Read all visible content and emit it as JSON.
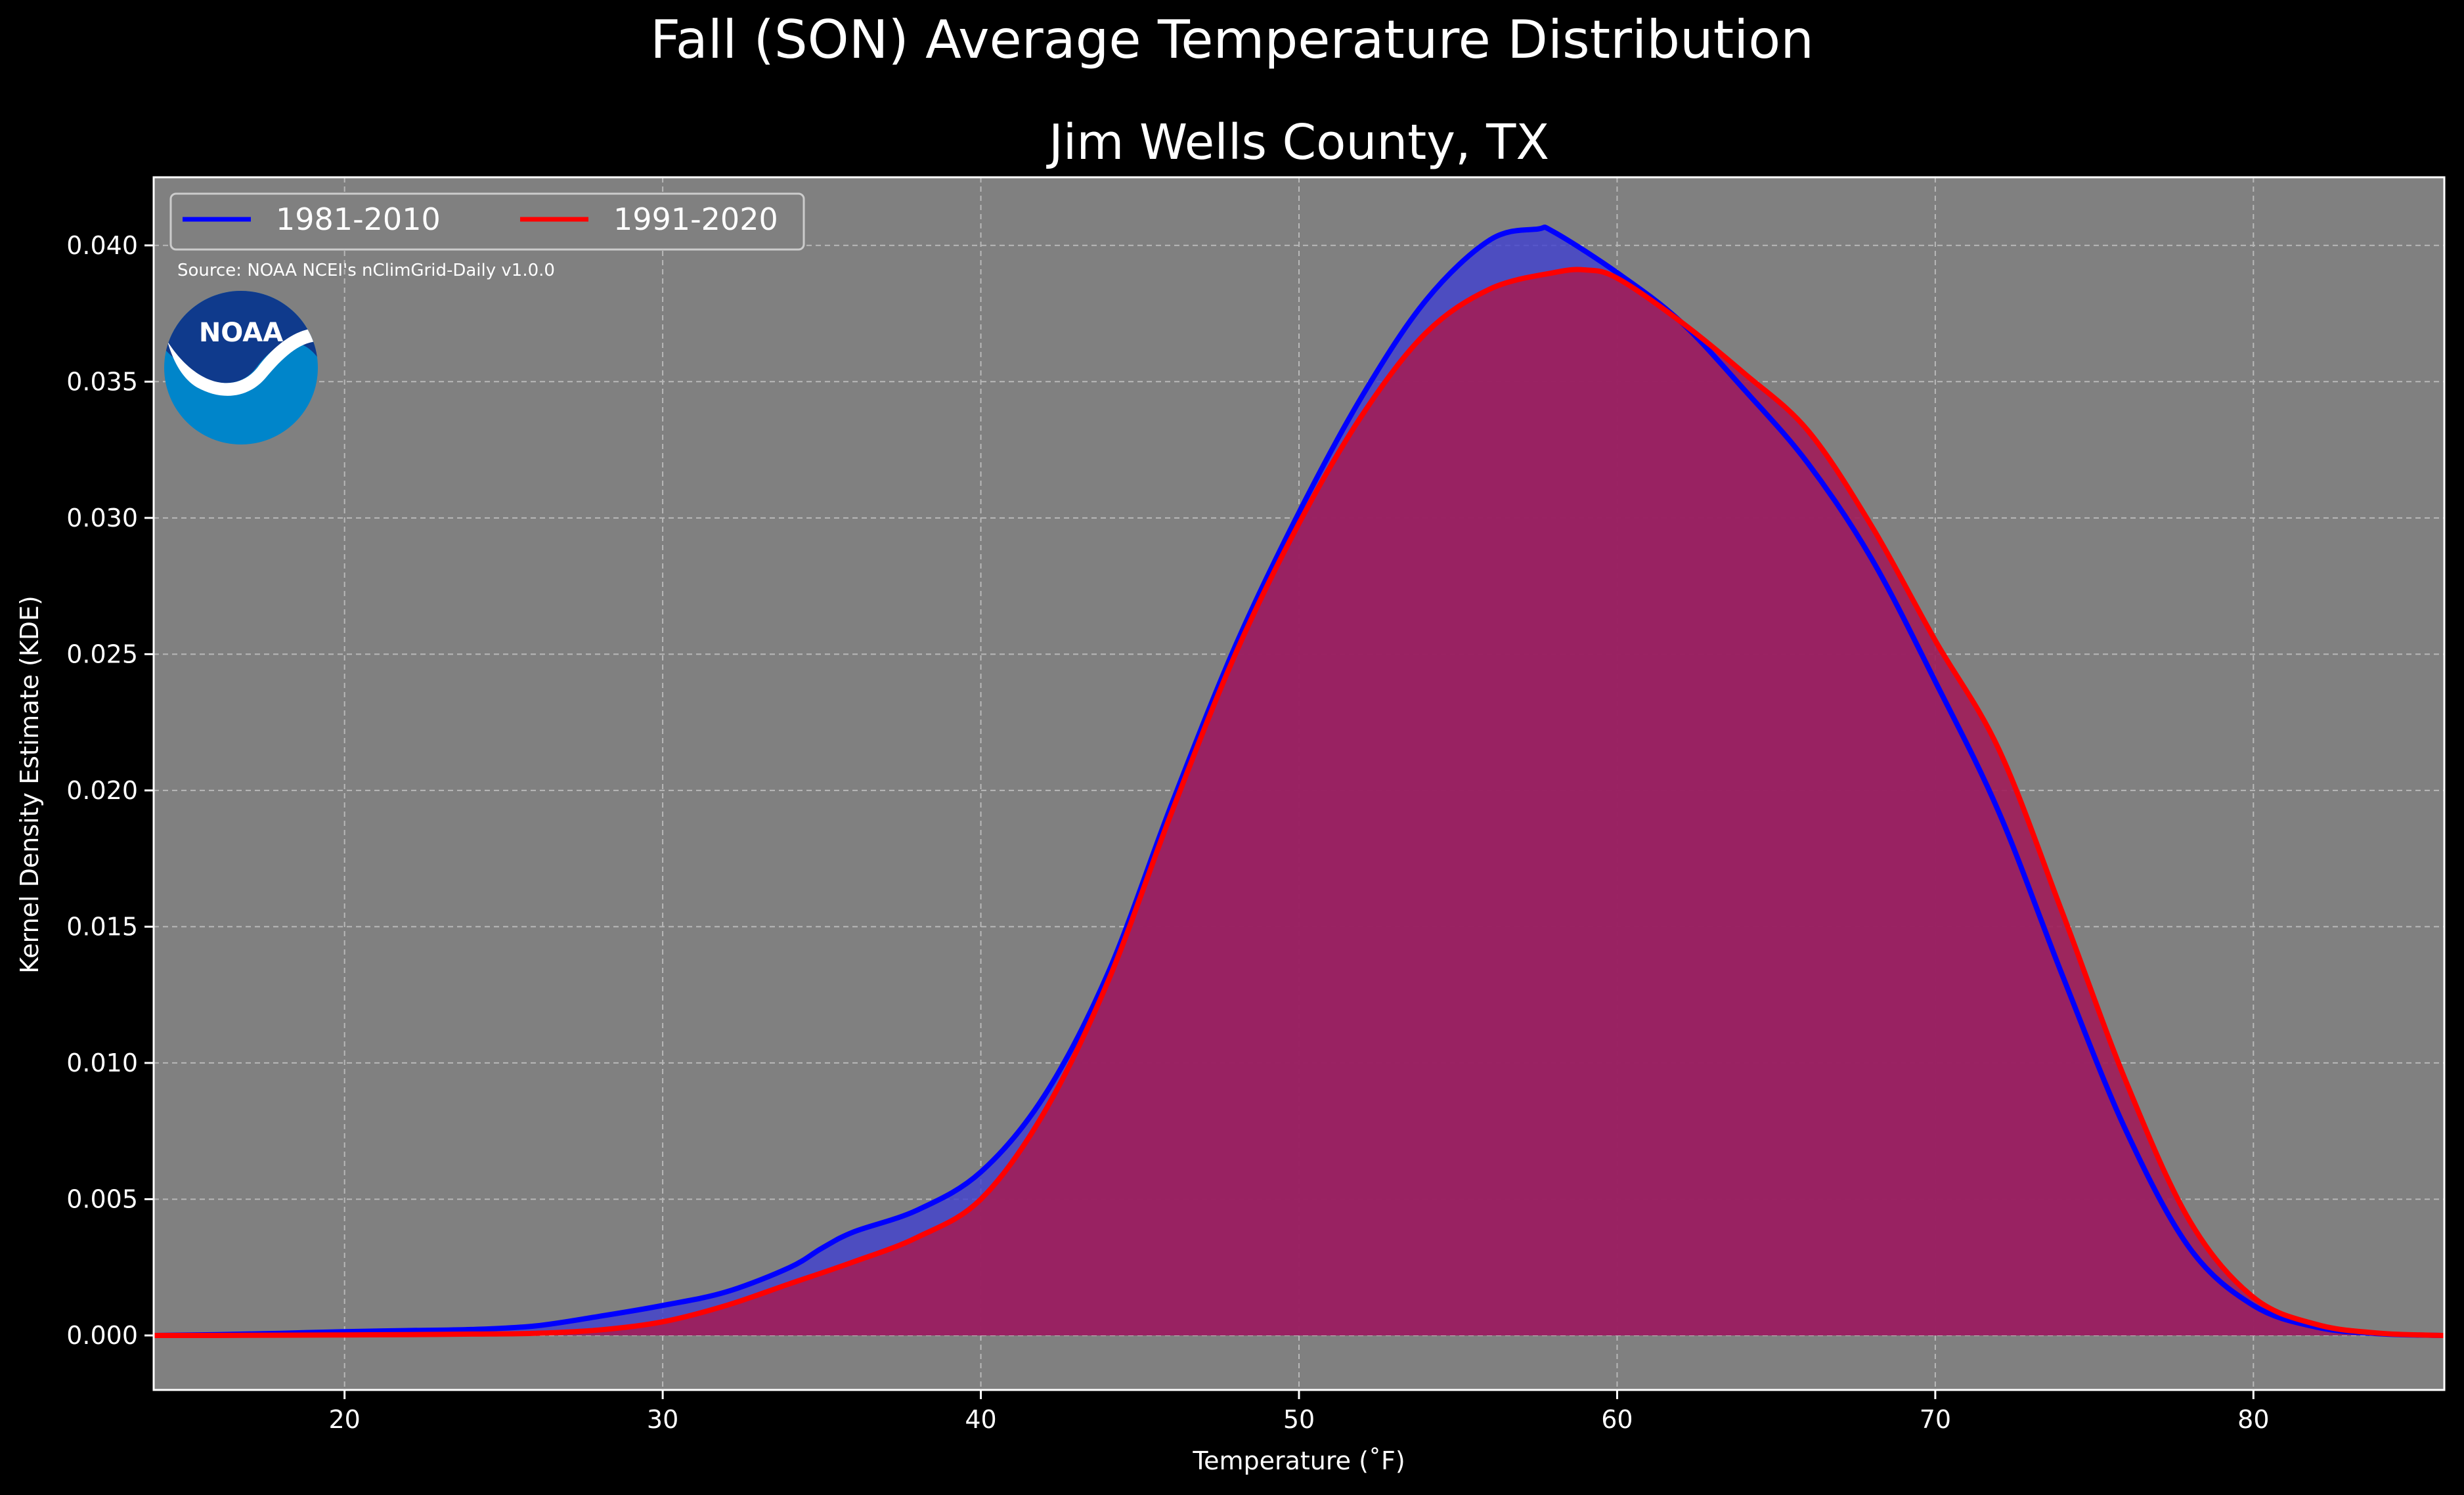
{
  "chart_data": {
    "type": "area",
    "title": "Fall (SON) Average Temperature Distribution",
    "subtitle": "Jim Wells County, TX",
    "xlabel": "Temperature (˚F)",
    "ylabel": "Kernel Density Estimate (KDE)",
    "xlim": [
      14,
      86
    ],
    "ylim": [
      -0.002,
      0.0425
    ],
    "x_ticks": [
      20,
      30,
      40,
      50,
      60,
      70,
      80
    ],
    "y_ticks": [
      0.0,
      0.005,
      0.01,
      0.015,
      0.02,
      0.025,
      0.03,
      0.035,
      0.04
    ],
    "y_tick_labels": [
      "0.000",
      "0.005",
      "0.010",
      "0.015",
      "0.020",
      "0.025",
      "0.030",
      "0.035",
      "0.040"
    ],
    "grid": true,
    "legend_position": "top-left",
    "source_note": "Source: NOAA NCEI's nClimGrid-Daily v1.0.0",
    "logo_text": "NOAA",
    "colors": {
      "background": "#000000",
      "plot_background": "#808080",
      "series1_line": "#0000ff",
      "series1_fill": "#4040d0",
      "series2_line": "#ff0000",
      "series2_fill": "#a01e5a"
    },
    "series": [
      {
        "name": "1981-2010",
        "x": [
          14,
          16,
          18,
          20,
          22,
          24,
          26,
          28,
          30,
          32,
          34,
          35,
          36,
          38,
          40,
          42,
          44,
          46,
          48,
          50,
          52,
          54,
          56,
          57.5,
          58,
          60,
          62,
          64,
          66,
          68,
          70,
          72,
          74,
          76,
          78,
          80,
          82,
          84,
          86
        ],
        "y": [
          0.0,
          3e-05,
          8e-05,
          0.00014,
          0.00018,
          0.00022,
          0.00035,
          0.0007,
          0.0011,
          0.0016,
          0.0025,
          0.0032,
          0.0038,
          0.0046,
          0.006,
          0.0088,
          0.0133,
          0.0195,
          0.0253,
          0.0302,
          0.0345,
          0.038,
          0.0402,
          0.0406,
          0.0405,
          0.039,
          0.0372,
          0.0347,
          0.032,
          0.0285,
          0.024,
          0.0192,
          0.0132,
          0.0075,
          0.0032,
          0.0011,
          0.0003,
          6e-05,
          0.0
        ]
      },
      {
        "name": "1991-2020",
        "x": [
          14,
          16,
          18,
          20,
          22,
          24,
          26,
          28,
          30,
          32,
          34,
          36,
          38,
          40,
          42,
          44,
          46,
          48,
          50,
          52,
          54,
          56,
          58,
          59,
          60,
          62,
          64,
          66,
          68,
          70,
          72,
          74,
          76,
          78,
          80,
          82,
          84,
          86
        ],
        "y": [
          0.0,
          0.0,
          1e-05,
          2e-05,
          3e-05,
          5e-05,
          8e-05,
          0.0002,
          0.0005,
          0.0011,
          0.0019,
          0.0027,
          0.0036,
          0.005,
          0.0082,
          0.013,
          0.0192,
          0.025,
          0.0298,
          0.0338,
          0.0368,
          0.0384,
          0.039,
          0.0391,
          0.0388,
          0.0372,
          0.0353,
          0.0332,
          0.0297,
          0.0255,
          0.0215,
          0.0155,
          0.0093,
          0.0042,
          0.0014,
          0.0004,
          8e-05,
          0.0
        ]
      }
    ]
  }
}
